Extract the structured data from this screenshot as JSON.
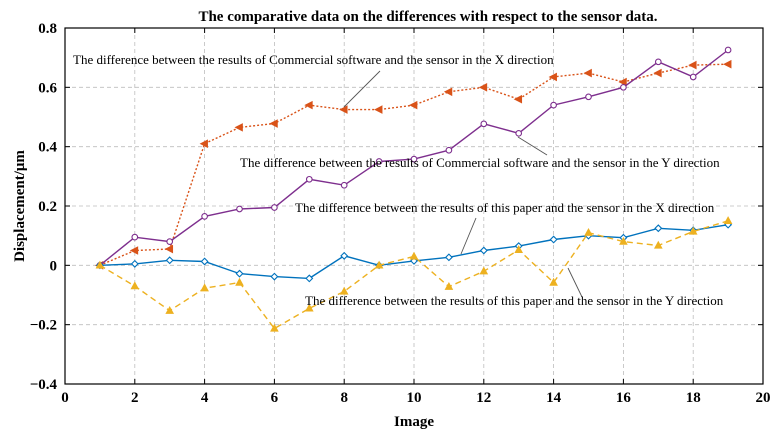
{
  "chart_data": {
    "type": "line",
    "title": "The comparative data on the differences with respect to the sensor data.",
    "xlabel": "Image",
    "ylabel": "Displacement/μm",
    "xlim": [
      0,
      20
    ],
    "ylim": [
      -0.4,
      0.8
    ],
    "xticks": [
      0,
      2,
      4,
      6,
      8,
      10,
      12,
      14,
      16,
      18,
      20
    ],
    "yticks": [
      -0.4,
      -0.2,
      0,
      0.2,
      0.4,
      0.6,
      0.8
    ],
    "xtick_labels": [
      "0",
      "2",
      "4",
      "6",
      "8",
      "10",
      "12",
      "14",
      "16",
      "18",
      "20"
    ],
    "ytick_labels": [
      "−0.4",
      "−0.2",
      "0",
      "0.2",
      "0.4",
      "0.6",
      "0.8"
    ],
    "grid": true,
    "x": [
      1,
      2,
      3,
      4,
      5,
      6,
      7,
      8,
      9,
      10,
      11,
      12,
      13,
      14,
      15,
      16,
      17,
      18,
      19
    ],
    "series": [
      {
        "name": "Commercial software X",
        "color": "#d95319",
        "dash": "dotted",
        "marker": "triangle-left",
        "values": [
          0.0,
          0.05,
          0.055,
          0.41,
          0.465,
          0.478,
          0.54,
          0.525,
          0.525,
          0.54,
          0.585,
          0.6,
          0.56,
          0.635,
          0.648,
          0.618,
          0.648,
          0.675,
          0.678
        ]
      },
      {
        "name": "Commercial software Y",
        "color": "#7e2f8e",
        "dash": "solid",
        "marker": "circle",
        "values": [
          0.0,
          0.095,
          0.08,
          0.165,
          0.19,
          0.195,
          0.29,
          0.27,
          0.35,
          0.358,
          0.388,
          0.477,
          0.445,
          0.54,
          0.568,
          0.6,
          0.686,
          0.635,
          0.726
        ]
      },
      {
        "name": "This paper X",
        "color": "#0072bd",
        "dash": "solid",
        "marker": "diamond",
        "values": [
          0.0,
          0.005,
          0.017,
          0.013,
          -0.028,
          -0.038,
          -0.044,
          0.032,
          0.0,
          0.015,
          0.027,
          0.05,
          0.065,
          0.087,
          0.1,
          0.093,
          0.125,
          0.118,
          0.137
        ]
      },
      {
        "name": "This paper Y",
        "color": "#edb120",
        "dash": "dashed",
        "marker": "triangle-up",
        "values": [
          0.0,
          -0.07,
          -0.153,
          -0.077,
          -0.058,
          -0.213,
          -0.145,
          -0.088,
          -0.0,
          0.03,
          -0.072,
          -0.02,
          0.052,
          -0.058,
          0.11,
          0.08,
          0.067,
          0.114,
          0.15
        ]
      }
    ],
    "annotations": [
      {
        "text": "The difference between the results of Commercial software and the sensor in the X direction"
      },
      {
        "text": "The difference between the results of Commercial software and the sensor in the Y direction"
      },
      {
        "text": "The difference between the results of this paper and the sensor in the X direction"
      },
      {
        "text": "The difference between the results of this paper and the sensor in the Y direction"
      }
    ]
  }
}
